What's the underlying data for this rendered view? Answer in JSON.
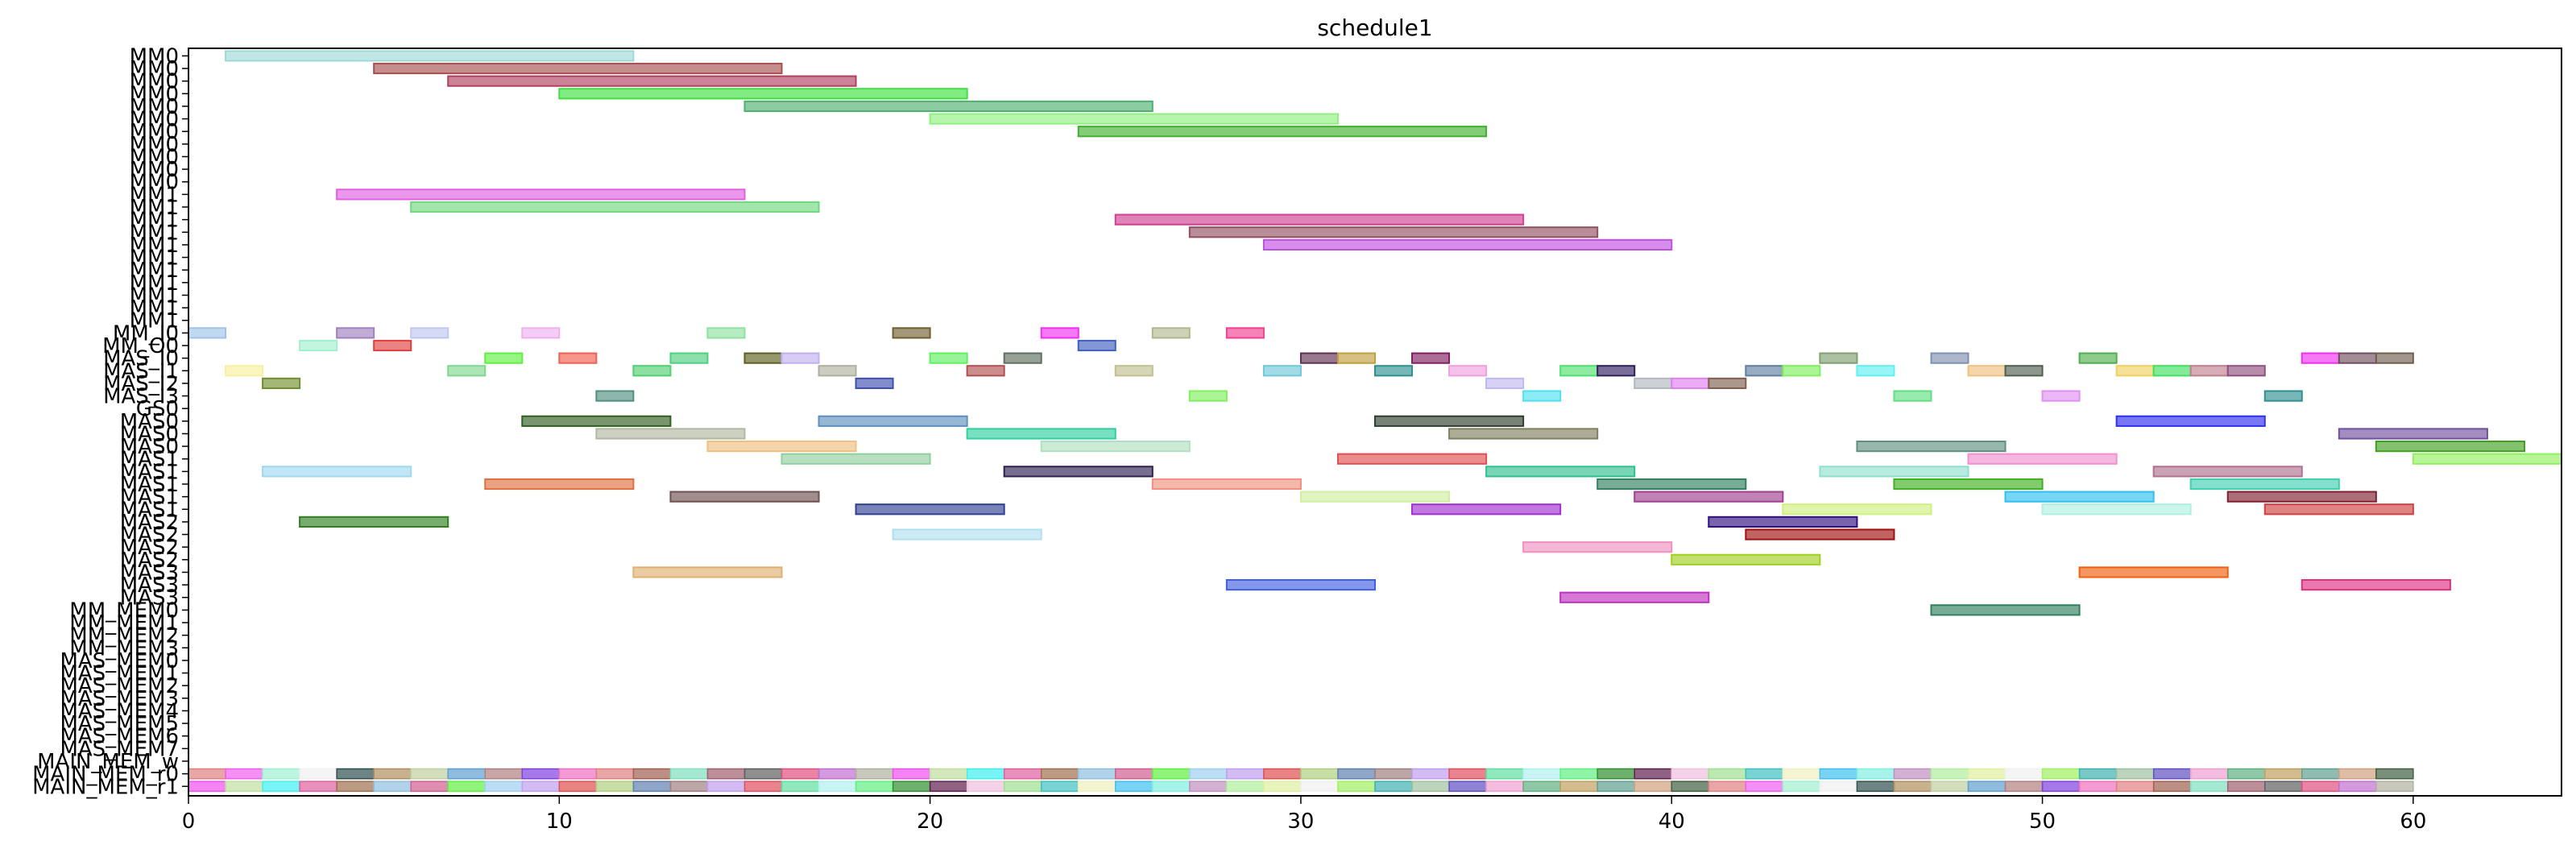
{
  "chart_data": {
    "type": "gantt",
    "title": "schedule1",
    "xlim": [
      0,
      64
    ],
    "x_ticks": [
      0,
      10,
      20,
      30,
      40,
      50,
      60
    ],
    "rows": [
      "MM0",
      "MM0",
      "MM0",
      "MM0",
      "MM0",
      "MM0",
      "MM0",
      "MM0",
      "MM0",
      "MM0",
      "MM0",
      "MM1",
      "MM1",
      "MM1",
      "MM1",
      "MM1",
      "MM1",
      "MM1",
      "MM1",
      "MM1",
      "MM1",
      "MM1",
      "MM_I0",
      "MM_O0",
      "MAS_I0",
      "MAS_I1",
      "MAS_I2",
      "MAS_I3",
      "GS0",
      "MAS0",
      "MAS0",
      "MAS0",
      "MAS1",
      "MAS1",
      "MAS1",
      "MAS1",
      "MAS1",
      "MAS2",
      "MAS2",
      "MAS2",
      "MAS2",
      "MAS3",
      "MAS3",
      "MAS3",
      "MM_MEM0",
      "MM_MEM1",
      "MM_MEM2",
      "MM_MEM3",
      "MAS_MEM0",
      "MAS_MEM1",
      "MAS_MEM2",
      "MAS_MEM3",
      "MAS_MEM4",
      "MAS_MEM5",
      "MAS_MEM6",
      "MAS_MEM7",
      "MAIN_MEM_w",
      "MAIN_MEM_r0",
      "MAIN_MEM_r1"
    ],
    "tasks": [
      {
        "row": 0,
        "start": 1,
        "end": 12,
        "color": "#9fd8d8"
      },
      {
        "row": 1,
        "start": 5,
        "end": 16,
        "color": "#a85050"
      },
      {
        "row": 2,
        "start": 7,
        "end": 18,
        "color": "#b04060"
      },
      {
        "row": 3,
        "start": 10,
        "end": 21,
        "color": "#40e040"
      },
      {
        "row": 4,
        "start": 15,
        "end": 26,
        "color": "#50b070"
      },
      {
        "row": 5,
        "start": 20,
        "end": 31,
        "color": "#90f080"
      },
      {
        "row": 6,
        "start": 24,
        "end": 35,
        "color": "#40b030"
      },
      {
        "row": 11,
        "start": 4,
        "end": 15,
        "color": "#e060e0"
      },
      {
        "row": 12,
        "start": 6,
        "end": 17,
        "color": "#70d880"
      },
      {
        "row": 13,
        "start": 25,
        "end": 36,
        "color": "#d04090"
      },
      {
        "row": 14,
        "start": 27,
        "end": 38,
        "color": "#905060"
      },
      {
        "row": 15,
        "start": 29,
        "end": 40,
        "color": "#c050e0"
      },
      {
        "row": 22,
        "start": 0,
        "end": 1,
        "color": "#a0c4e8"
      },
      {
        "row": 22,
        "start": 4,
        "end": 5,
        "color": "#a080c0"
      },
      {
        "row": 22,
        "start": 6,
        "end": 7,
        "color": "#c0c8f0"
      },
      {
        "row": 22,
        "start": 9,
        "end": 10,
        "color": "#f0b0f0"
      },
      {
        "row": 22,
        "start": 14,
        "end": 15,
        "color": "#90e0a0"
      },
      {
        "row": 22,
        "start": 19,
        "end": 20,
        "color": "#706030"
      },
      {
        "row": 22,
        "start": 23,
        "end": 24,
        "color": "#f030f0"
      },
      {
        "row": 22,
        "start": 26,
        "end": 27,
        "color": "#b0b890"
      },
      {
        "row": 22,
        "start": 28,
        "end": 29,
        "color": "#f04090"
      },
      {
        "row": 23,
        "start": 3,
        "end": 4,
        "color": "#a0f0d0"
      },
      {
        "row": 23,
        "start": 5,
        "end": 6,
        "color": "#e04040"
      },
      {
        "row": 23,
        "start": 24,
        "end": 25,
        "color": "#4060c0"
      },
      {
        "row": 24,
        "start": 8,
        "end": 9,
        "color": "#60f040"
      },
      {
        "row": 24,
        "start": 10,
        "end": 11,
        "color": "#f06050"
      },
      {
        "row": 24,
        "start": 13,
        "end": 14,
        "color": "#50d080"
      },
      {
        "row": 24,
        "start": 15,
        "end": 16,
        "color": "#606020"
      },
      {
        "row": 24,
        "start": 16,
        "end": 17,
        "color": "#c0b0f0"
      },
      {
        "row": 24,
        "start": 20,
        "end": 21,
        "color": "#60f060"
      },
      {
        "row": 24,
        "start": 22,
        "end": 23,
        "color": "#607060"
      },
      {
        "row": 24,
        "start": 30,
        "end": 31,
        "color": "#603050"
      },
      {
        "row": 24,
        "start": 31,
        "end": 32,
        "color": "#c0a040"
      },
      {
        "row": 24,
        "start": 33,
        "end": 34,
        "color": "#802060"
      },
      {
        "row": 24,
        "start": 44,
        "end": 45,
        "color": "#80a070"
      },
      {
        "row": 24,
        "start": 47,
        "end": 48,
        "color": "#8090b0"
      },
      {
        "row": 24,
        "start": 51,
        "end": 52,
        "color": "#50b050"
      },
      {
        "row": 24,
        "start": 57,
        "end": 58,
        "color": "#f030f0"
      },
      {
        "row": 24,
        "start": 58,
        "end": 59,
        "color": "#705060"
      },
      {
        "row": 24,
        "start": 59,
        "end": 60,
        "color": "#706050"
      },
      {
        "row": 25,
        "start": 1,
        "end": 2,
        "color": "#f8f0a0"
      },
      {
        "row": 25,
        "start": 7,
        "end": 8,
        "color": "#80d890"
      },
      {
        "row": 25,
        "start": 12,
        "end": 13,
        "color": "#50d070"
      },
      {
        "row": 25,
        "start": 17,
        "end": 18,
        "color": "#b0b0a0"
      },
      {
        "row": 25,
        "start": 21,
        "end": 22,
        "color": "#b05050"
      },
      {
        "row": 25,
        "start": 25,
        "end": 26,
        "color": "#c0c090"
      },
      {
        "row": 25,
        "start": 29,
        "end": 30,
        "color": "#70c8d8"
      },
      {
        "row": 25,
        "start": 32,
        "end": 33,
        "color": "#309090"
      },
      {
        "row": 25,
        "start": 34,
        "end": 35,
        "color": "#f0a0e0"
      },
      {
        "row": 25,
        "start": 37,
        "end": 38,
        "color": "#50e070"
      },
      {
        "row": 25,
        "start": 38,
        "end": 39,
        "color": "#302060"
      },
      {
        "row": 25,
        "start": 42,
        "end": 43,
        "color": "#6080a0"
      },
      {
        "row": 25,
        "start": 43,
        "end": 44,
        "color": "#80f060"
      },
      {
        "row": 25,
        "start": 45,
        "end": 46,
        "color": "#60f0f0"
      },
      {
        "row": 25,
        "start": 48,
        "end": 49,
        "color": "#f0c080"
      },
      {
        "row": 25,
        "start": 49,
        "end": 50,
        "color": "#506050"
      },
      {
        "row": 25,
        "start": 52,
        "end": 53,
        "color": "#f0d060"
      },
      {
        "row": 25,
        "start": 53,
        "end": 54,
        "color": "#40e060"
      },
      {
        "row": 25,
        "start": 54,
        "end": 55,
        "color": "#c08090"
      },
      {
        "row": 25,
        "start": 55,
        "end": 56,
        "color": "#905080"
      },
      {
        "row": 26,
        "start": 2,
        "end": 3,
        "color": "#709030"
      },
      {
        "row": 26,
        "start": 18,
        "end": 19,
        "color": "#4050b0"
      },
      {
        "row": 26,
        "start": 35,
        "end": 36,
        "color": "#c0b8f0"
      },
      {
        "row": 26,
        "start": 39,
        "end": 40,
        "color": "#b0b8c0"
      },
      {
        "row": 26,
        "start": 40,
        "end": 41,
        "color": "#e080f0"
      },
      {
        "row": 26,
        "start": 41,
        "end": 42,
        "color": "#806050"
      },
      {
        "row": 27,
        "start": 11,
        "end": 12,
        "color": "#509080"
      },
      {
        "row": 27,
        "start": 27,
        "end": 28,
        "color": "#80f060"
      },
      {
        "row": 27,
        "start": 36,
        "end": 37,
        "color": "#50e0f0"
      },
      {
        "row": 27,
        "start": 46,
        "end": 47,
        "color": "#60e080"
      },
      {
        "row": 27,
        "start": 50,
        "end": 51,
        "color": "#e090f0"
      },
      {
        "row": 27,
        "start": 56,
        "end": 57,
        "color": "#309090"
      },
      {
        "row": 29,
        "start": 9,
        "end": 13,
        "color": "#306020"
      },
      {
        "row": 29,
        "start": 17,
        "end": 21,
        "color": "#6090c0"
      },
      {
        "row": 29,
        "start": 32,
        "end": 36,
        "color": "#304030"
      },
      {
        "row": 29,
        "start": 52,
        "end": 56,
        "color": "#3030f0"
      },
      {
        "row": 30,
        "start": 11,
        "end": 15,
        "color": "#b0b8a0"
      },
      {
        "row": 30,
        "start": 21,
        "end": 25,
        "color": "#30d0a0"
      },
      {
        "row": 30,
        "start": 34,
        "end": 38,
        "color": "#808060"
      },
      {
        "row": 30,
        "start": 58,
        "end": 62,
        "color": "#7050a0"
      },
      {
        "row": 31,
        "start": 14,
        "end": 18,
        "color": "#f0c080"
      },
      {
        "row": 31,
        "start": 23,
        "end": 27,
        "color": "#b0e0c0"
      },
      {
        "row": 31,
        "start": 45,
        "end": 49,
        "color": "#609080"
      },
      {
        "row": 31,
        "start": 59,
        "end": 63,
        "color": "#40a020"
      },
      {
        "row": 32,
        "start": 16,
        "end": 20,
        "color": "#90d0a0"
      },
      {
        "row": 32,
        "start": 31,
        "end": 35,
        "color": "#e05050"
      },
      {
        "row": 32,
        "start": 48,
        "end": 52,
        "color": "#f090d0"
      },
      {
        "row": 32,
        "start": 60,
        "end": 64,
        "color": "#90f060"
      },
      {
        "row": 33,
        "start": 2,
        "end": 6,
        "color": "#a0d8f0"
      },
      {
        "row": 33,
        "start": 22,
        "end": 26,
        "color": "#302050"
      },
      {
        "row": 33,
        "start": 35,
        "end": 39,
        "color": "#30c090"
      },
      {
        "row": 33,
        "start": 44,
        "end": 48,
        "color": "#90e0d0"
      },
      {
        "row": 33,
        "start": 53,
        "end": 57,
        "color": "#b07090"
      },
      {
        "row": 34,
        "start": 8,
        "end": 12,
        "color": "#e07040"
      },
      {
        "row": 34,
        "start": 26,
        "end": 30,
        "color": "#f09080"
      },
      {
        "row": 34,
        "start": 38,
        "end": 42,
        "color": "#308060"
      },
      {
        "row": 34,
        "start": 46,
        "end": 50,
        "color": "#40b020"
      },
      {
        "row": 34,
        "start": 54,
        "end": 58,
        "color": "#40d0b0"
      },
      {
        "row": 35,
        "start": 13,
        "end": 17,
        "color": "#705050"
      },
      {
        "row": 35,
        "start": 30,
        "end": 34,
        "color": "#d0f0a0"
      },
      {
        "row": 35,
        "start": 39,
        "end": 43,
        "color": "#a04090"
      },
      {
        "row": 35,
        "start": 49,
        "end": 53,
        "color": "#30c0f0"
      },
      {
        "row": 35,
        "start": 55,
        "end": 59,
        "color": "#802030"
      },
      {
        "row": 36,
        "start": 18,
        "end": 22,
        "color": "#304090"
      },
      {
        "row": 36,
        "start": 33,
        "end": 37,
        "color": "#a030d0"
      },
      {
        "row": 36,
        "start": 43,
        "end": 47,
        "color": "#d0f080"
      },
      {
        "row": 36,
        "start": 50,
        "end": 54,
        "color": "#b0f0e0"
      },
      {
        "row": 36,
        "start": 56,
        "end": 60,
        "color": "#d04040"
      },
      {
        "row": 37,
        "start": 3,
        "end": 7,
        "color": "#308020"
      },
      {
        "row": 37,
        "start": 41,
        "end": 45,
        "color": "#301080"
      },
      {
        "row": 38,
        "start": 19,
        "end": 23,
        "color": "#b0e0f0"
      },
      {
        "row": 38,
        "start": 42,
        "end": 46,
        "color": "#a01010"
      },
      {
        "row": 39,
        "start": 36,
        "end": 40,
        "color": "#f090c0"
      },
      {
        "row": 40,
        "start": 40,
        "end": 44,
        "color": "#a0d020"
      },
      {
        "row": 41,
        "start": 12,
        "end": 16,
        "color": "#e0b070"
      },
      {
        "row": 41,
        "start": 51,
        "end": 55,
        "color": "#f06010"
      },
      {
        "row": 42,
        "start": 28,
        "end": 32,
        "color": "#4060e0"
      },
      {
        "row": 42,
        "start": 57,
        "end": 61,
        "color": "#e03080"
      },
      {
        "row": 43,
        "start": 37,
        "end": 41,
        "color": "#c030c0"
      },
      {
        "row": 44,
        "start": 47,
        "end": 51,
        "color": "#308060"
      }
    ],
    "palette": [
      "#e08080",
      "#f0f0c0",
      "#60f040",
      "#8040e0",
      "#a0c0a0",
      "#60e0a0",
      "#b0b0a0",
      "#f060f0",
      "#40c0f0",
      "#a0d0f0",
      "#f070c0",
      "#6050c0",
      "#b0f0f0",
      "#f050f0",
      "#a0f0d0",
      "#80f0e0",
      "#c0a0f0",
      "#e08080",
      "#f0a0d0",
      "#60f080",
      "#c0e0a0",
      "#f0f0f0",
      "#c090c0",
      "#e05050",
      "#a06050",
      "#60b080",
      "#309030",
      "#40f0f0",
      "#305050",
      "#b0f0a0",
      "#b0d080",
      "#80e0c0",
      "#c0a060",
      "#602050",
      "#e060a0",
      "#b09060",
      "#e0f0a0",
      "#6080b0",
      "#a06070",
      "#60a090",
      "#f0c0e0",
      "#a07050",
      "#c0d0a0",
      "#f0f0f0",
      "#a08080",
      "#606060",
      "#d0a080",
      "#a0e090",
      "#90c0e0",
      "#60a0d0",
      "#a0f060",
      "#c0a0f0",
      "#e05080",
      "#406040",
      "#40c0c0",
      "#d06090",
      "#b08080",
      "#40b0b0",
      "#e05060",
      "#c070d0"
    ],
    "main_mem_intervals": 60,
    "grid": false,
    "legend": false
  }
}
